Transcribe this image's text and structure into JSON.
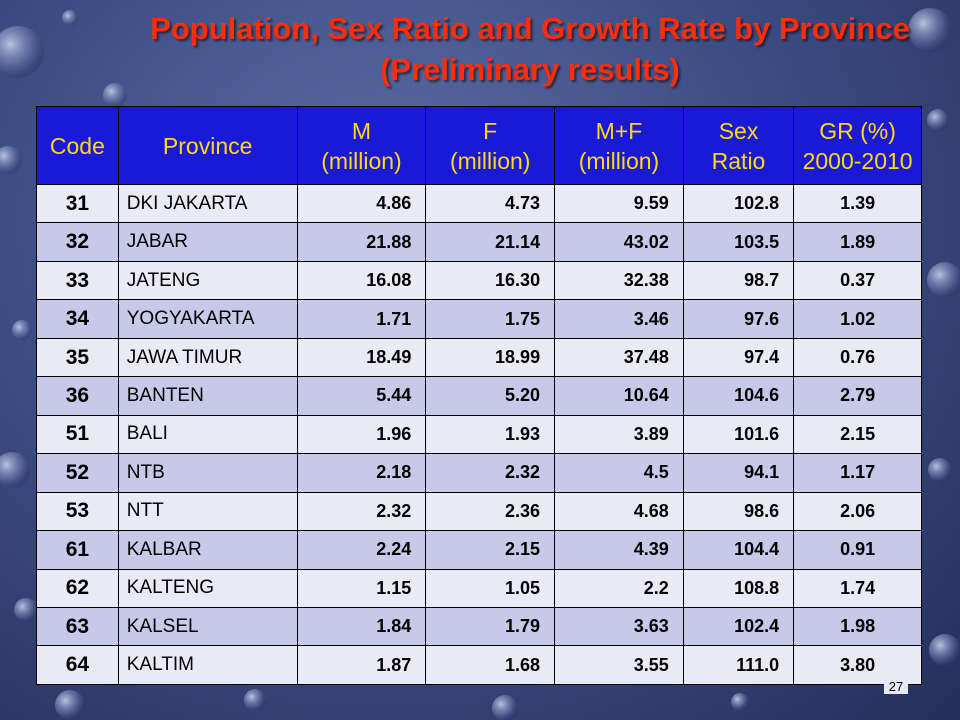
{
  "slide": {
    "title_line1": "Population, Sex Ratio and Growth Rate by Province",
    "title_line2": "(Preliminary results)",
    "page_number": "27"
  },
  "table": {
    "headers": [
      {
        "line1": "Code",
        "line2": ""
      },
      {
        "line1": "Province",
        "line2": ""
      },
      {
        "line1": "M",
        "line2": "(million)"
      },
      {
        "line1": "F",
        "line2": "(million)"
      },
      {
        "line1": "M+F",
        "line2": "(million)"
      },
      {
        "line1": "Sex",
        "line2": "Ratio"
      },
      {
        "line1": "GR (%)",
        "line2": "2000-2010"
      }
    ],
    "rows": [
      {
        "code": "31",
        "province": "DKI JAKARTA",
        "m": "4.86",
        "f": "4.73",
        "mf": "9.59",
        "sex_ratio": "102.8",
        "gr": "1.39"
      },
      {
        "code": "32",
        "province": "JABAR",
        "m": "21.88",
        "f": "21.14",
        "mf": "43.02",
        "sex_ratio": "103.5",
        "gr": "1.89"
      },
      {
        "code": "33",
        "province": "JATENG",
        "m": "16.08",
        "f": "16.30",
        "mf": "32.38",
        "sex_ratio": "98.7",
        "gr": "0.37"
      },
      {
        "code": "34",
        "province": "YOGYAKARTA",
        "m": "1.71",
        "f": "1.75",
        "mf": "3.46",
        "sex_ratio": "97.6",
        "gr": "1.02"
      },
      {
        "code": "35",
        "province": "JAWA TIMUR",
        "m": "18.49",
        "f": "18.99",
        "mf": "37.48",
        "sex_ratio": "97.4",
        "gr": "0.76"
      },
      {
        "code": "36",
        "province": "BANTEN",
        "m": "5.44",
        "f": "5.20",
        "mf": "10.64",
        "sex_ratio": "104.6",
        "gr": "2.79"
      },
      {
        "code": "51",
        "province": "BALI",
        "m": "1.96",
        "f": "1.93",
        "mf": "3.89",
        "sex_ratio": "101.6",
        "gr": "2.15"
      },
      {
        "code": "52",
        "province": "NTB",
        "m": "2.18",
        "f": "2.32",
        "mf": "4.5",
        "sex_ratio": "94.1",
        "gr": "1.17"
      },
      {
        "code": "53",
        "province": "NTT",
        "m": "2.32",
        "f": "2.36",
        "mf": "4.68",
        "sex_ratio": "98.6",
        "gr": "2.06"
      },
      {
        "code": "61",
        "province": "KALBAR",
        "m": "2.24",
        "f": "2.15",
        "mf": "4.39",
        "sex_ratio": "104.4",
        "gr": "0.91"
      },
      {
        "code": "62",
        "province": "KALTENG",
        "m": "1.15",
        "f": "1.05",
        "mf": "2.2",
        "sex_ratio": "108.8",
        "gr": "1.74"
      },
      {
        "code": "63",
        "province": "KALSEL",
        "m": "1.84",
        "f": "1.79",
        "mf": "3.63",
        "sex_ratio": "102.4",
        "gr": "1.98"
      },
      {
        "code": "64",
        "province": "KALTIM",
        "m": "1.87",
        "f": "1.68",
        "mf": "3.55",
        "sex_ratio": "111.0",
        "gr": "3.80"
      }
    ]
  },
  "colors": {
    "title": "#ff2d0a",
    "header_bg": "#1a1ad6",
    "header_text": "#ffd814",
    "row_dark": "#c6c9e8",
    "row_light": "#eaeaf7"
  }
}
